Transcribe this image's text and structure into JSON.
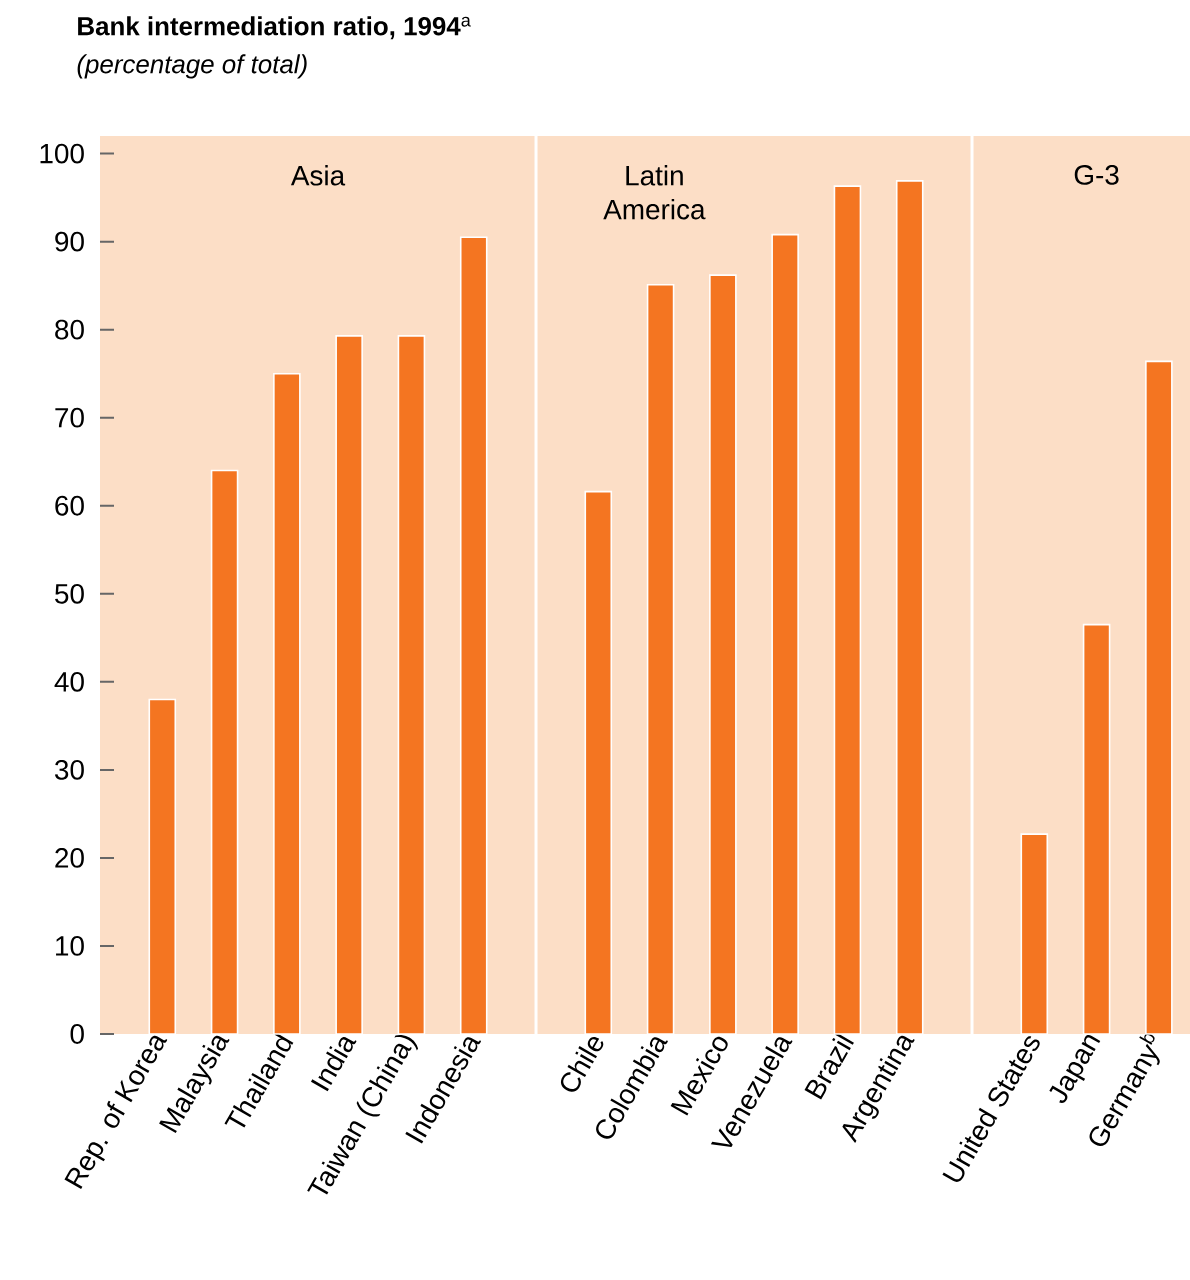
{
  "chart_data": {
    "type": "bar",
    "title": "**Bank intermediation ratio, 1994**$^{a}$",
    "subtitle": "*(percentage of total)*",
    "categories": [
      "Rep. of Korea",
      "Malaysia",
      "Thailand",
      "India",
      "Taiwan (China)",
      "Indonesia",
      null,
      "Chile",
      "Colombia",
      "Mexico",
      "Venezuela",
      "Brazil",
      "Argentina",
      null,
      "United States",
      "Japan",
      "Germany$^{b}$"
    ],
    "values": [
      38,
      64,
      75,
      79.3,
      79.3,
      90.5,
      null,
      61.6,
      85.1,
      86.2,
      90.8,
      96.3,
      96.9,
      null,
      22.7,
      46.5,
      76.4
    ],
    "color": "#f47521",
    "annotations": [
      "Asia",
      "Latin America",
      "G-3"
    ],
    "ylim": [
      0,
      102
    ],
    "yticks": [
      0,
      10,
      20,
      30,
      40,
      50,
      60,
      70,
      80,
      90,
      100
    ]
  }
}
